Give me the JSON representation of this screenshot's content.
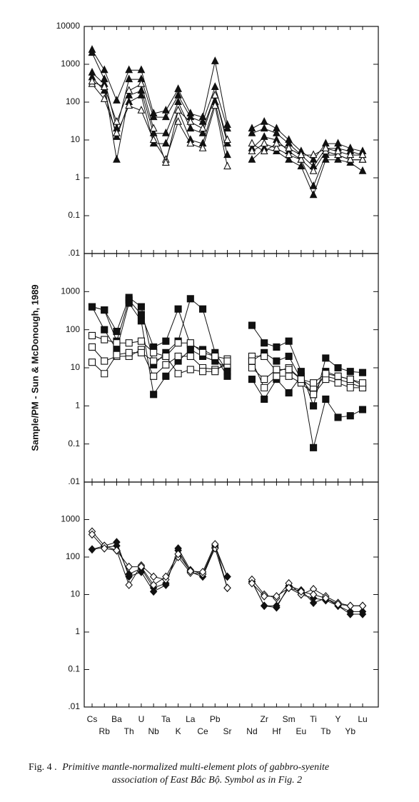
{
  "chart_data": [
    {
      "type": "line",
      "log_y": true,
      "ylim": [
        0.01,
        10000
      ],
      "yticks": [
        10000,
        1000,
        100,
        10,
        1,
        0.1,
        {
          "value": 0.01,
          "label": ".01"
        }
      ],
      "series": [
        {
          "color": "#111111",
          "marker": "triangle",
          "filled": true,
          "values": [
            2400,
            700,
            110,
            700,
            700,
            50,
            60,
            220,
            50,
            40,
            1200,
            25,
            null,
            20,
            30,
            20,
            10,
            5,
            3,
            8,
            8,
            6,
            5
          ]
        },
        {
          "color": "#111111",
          "marker": "triangle",
          "filled": true,
          "values": [
            2000,
            400,
            20,
            400,
            400,
            40,
            40,
            150,
            40,
            30,
            250,
            20,
            null,
            15,
            20,
            15,
            8,
            4,
            2,
            6,
            6,
            5,
            4
          ]
        },
        {
          "color": "#111111",
          "marker": "triangle",
          "filled": true,
          "values": [
            600,
            300,
            3,
            150,
            200,
            15,
            15,
            100,
            20,
            15,
            150,
            8,
            null,
            6,
            12,
            10,
            5,
            3,
            0.6,
            4,
            4,
            3,
            3
          ]
        },
        {
          "color": "#111111",
          "marker": "triangle",
          "filled": true,
          "values": [
            450,
            200,
            12,
            100,
            150,
            8,
            8,
            60,
            10,
            8,
            100,
            4,
            null,
            3,
            6,
            5,
            3,
            2,
            0.35,
            3,
            3,
            2.5,
            1.5
          ]
        },
        {
          "color": "#111111",
          "marker": "triangle",
          "filled": false,
          "values": [
            300,
            120,
            15,
            80,
            60,
            10,
            3,
            30,
            8,
            6,
            80,
            2,
            null,
            5,
            8,
            6,
            4,
            3,
            1.5,
            5,
            4,
            3,
            3
          ]
        },
        {
          "color": "#111111",
          "marker": "triangle",
          "filled": false,
          "values": [
            350,
            250,
            30,
            200,
            300,
            20,
            2.5,
            60,
            30,
            20,
            150,
            10,
            null,
            8,
            5,
            8,
            6,
            4,
            4,
            6,
            5,
            4,
            4
          ]
        }
      ]
    },
    {
      "type": "line",
      "log_y": true,
      "ylim": [
        0.01,
        10000
      ],
      "yticks": [
        1000,
        100,
        10,
        1,
        0.1,
        {
          "value": 0.01,
          "label": ".01"
        }
      ],
      "ylabel": "Sample/PM - Sun & McDonough, 1989",
      "series": [
        {
          "color": "#111111",
          "marker": "square",
          "filled": true,
          "values": [
            400,
            330,
            90,
            700,
            400,
            12,
            25,
            50,
            650,
            350,
            25,
            8,
            null,
            130,
            45,
            35,
            50,
            8,
            1,
            18,
            10,
            8,
            7.5
          ]
        },
        {
          "color": "#111111",
          "marker": "square",
          "filled": true,
          "values": [
            400,
            330,
            50,
            600,
            250,
            35,
            50,
            350,
            40,
            30,
            20,
            6,
            null,
            15,
            25,
            15,
            20,
            5,
            2,
            8,
            6,
            5,
            3.5
          ]
        },
        {
          "color": "#111111",
          "marker": "square",
          "filled": true,
          "values": [
            400,
            100,
            30,
            500,
            170,
            2,
            6,
            15,
            30,
            20,
            15,
            10,
            null,
            5,
            1.5,
            5,
            2.2,
            6,
            0.08,
            1.5,
            0.5,
            0.55,
            0.8
          ]
        },
        {
          "color": "#111111",
          "marker": "square",
          "filled": false,
          "values": [
            70,
            55,
            45,
            45,
            50,
            25,
            20,
            45,
            45,
            25,
            20,
            17,
            null,
            20,
            20,
            8,
            10,
            5,
            3,
            6,
            5,
            4,
            3
          ]
        },
        {
          "color": "#111111",
          "marker": "square",
          "filled": false,
          "values": [
            35,
            15,
            20,
            20,
            30,
            6,
            12,
            20,
            20,
            10,
            9,
            12,
            null,
            15,
            3,
            6,
            6,
            4,
            2,
            5,
            4,
            3,
            3
          ]
        },
        {
          "color": "#111111",
          "marker": "square",
          "filled": false,
          "values": [
            14,
            7,
            22,
            25,
            25,
            15,
            20,
            7,
            9,
            8,
            8,
            15,
            null,
            10,
            5,
            9,
            9,
            5,
            4,
            7,
            6,
            5,
            4
          ]
        }
      ]
    },
    {
      "type": "line",
      "log_y": true,
      "ylim": [
        0.01,
        10000
      ],
      "yticks": [
        1000,
        100,
        10,
        1,
        0.1,
        {
          "value": 0.01,
          "label": ".01"
        }
      ],
      "categories": [
        "Cs",
        "Rb",
        "Ba",
        "Th",
        "U",
        "Nb",
        "Ta",
        "K",
        "La",
        "Ce",
        "Pb",
        "Sr",
        null,
        "Nd",
        "Zr",
        "Hf",
        "Sm",
        "Eu",
        "Ti",
        "Tb",
        "Y",
        "Yb",
        "Lu"
      ],
      "series": [
        {
          "color": "#111111",
          "marker": "diamond",
          "filled": true,
          "values": [
            160,
            200,
            250,
            30,
            40,
            12,
            18,
            170,
            45,
            35,
            200,
            30,
            null,
            22,
            5,
            4.5,
            17,
            13,
            6,
            8,
            5,
            3,
            3
          ]
        },
        {
          "color": "#111111",
          "marker": "diamond",
          "filled": true,
          "values": [
            160,
            180,
            200,
            35,
            50,
            15,
            20,
            150,
            40,
            30,
            180,
            30,
            null,
            22,
            5,
            5,
            15,
            10,
            8,
            7,
            5,
            3.5,
            3.5
          ]
        },
        {
          "color": "#111111",
          "marker": "diamond",
          "filled": false,
          "values": [
            480,
            200,
            150,
            18,
            60,
            30,
            25,
            100,
            38,
            35,
            170,
            15,
            null,
            25,
            10,
            8,
            20,
            10,
            14,
            9,
            6,
            5,
            5
          ]
        },
        {
          "color": "#111111",
          "marker": "diamond",
          "filled": false,
          "values": [
            400,
            170,
            150,
            55,
            55,
            18,
            30,
            120,
            42,
            40,
            220,
            15,
            null,
            20,
            9,
            9,
            15,
            12,
            10,
            8,
            5.5,
            5,
            5
          ]
        }
      ]
    }
  ],
  "caption": {
    "label": "Fig. 4 .",
    "lines": [
      "Primitive mantle-normalized multi-element plots of gabbro-syenite",
      "association of East Bắc Bộ. Symbol as in Fig. 2"
    ]
  }
}
